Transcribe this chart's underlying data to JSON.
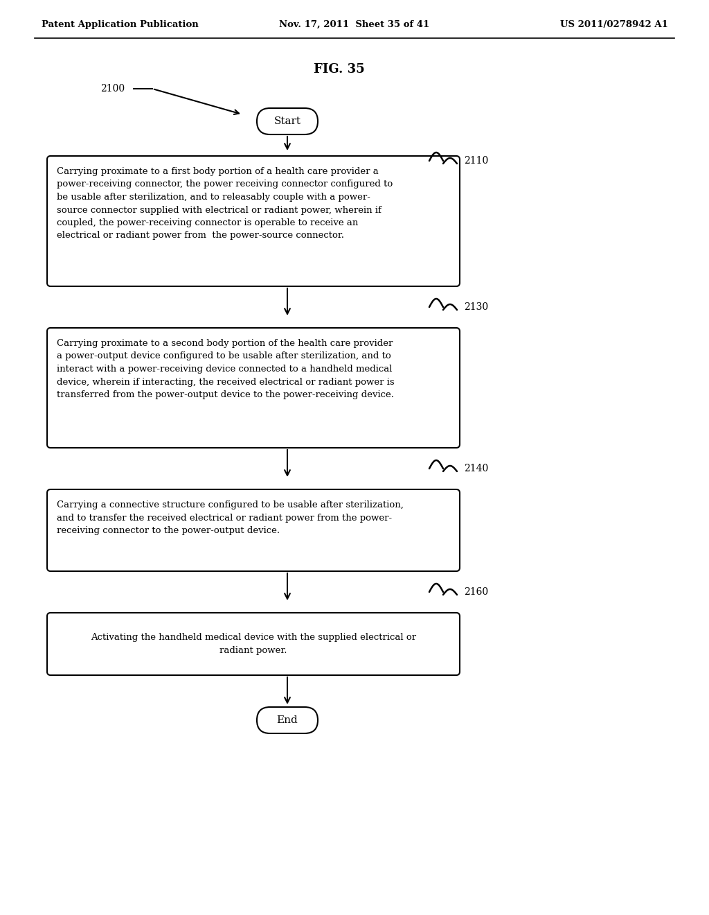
{
  "header_left": "Patent Application Publication",
  "header_mid": "Nov. 17, 2011  Sheet 35 of 41",
  "header_right": "US 2011/0278942 A1",
  "fig_title": "FIG. 35",
  "label_2100": "2100",
  "start_label": "Start",
  "end_label": "End",
  "box_label_2110": "2110",
  "box_label_2130": "2130",
  "box_label_2140": "2140",
  "box_label_2160": "2160",
  "box_text_2110": "Carrying proximate to a first body portion of a health care provider a\npower-receiving connector, the power receiving connector configured to\nbe usable after sterilization, and to releasably couple with a power-\nsource connector supplied with electrical or radiant power, wherein if\ncoupled, the power-receiving connector is operable to receive an\nelectrical or radiant power from  the power-source connector.",
  "box_text_2130": "Carrying proximate to a second body portion of the health care provider\na power-output device configured to be usable after sterilization, and to\ninteract with a power-receiving device connected to a handheld medical\ndevice, wherein if interacting, the received electrical or radiant power is\ntransferred from the power-output device to the power-receiving device.",
  "box_text_2140": "Carrying a connective structure configured to be usable after sterilization,\nand to transfer the received electrical or radiant power from the power-\nreceiving connector to the power-output device.",
  "box_text_2160": "Activating the handheld medical device with the supplied electrical or\nradiant power.",
  "bg_color": "#ffffff",
  "text_color": "#000000"
}
